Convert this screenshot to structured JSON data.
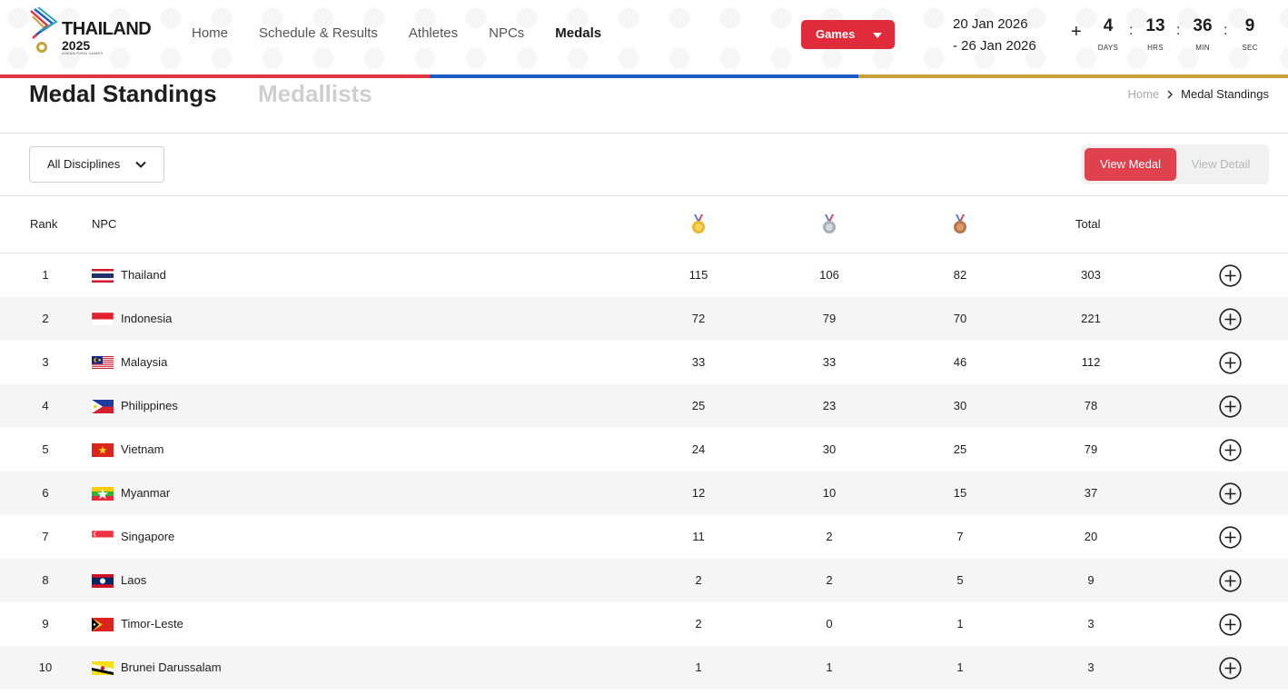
{
  "header": {
    "logo": {
      "word": "THAILAND",
      "year": "2025",
      "subtitle": "ASEAN PARA GAMES"
    },
    "nav": [
      {
        "label": "Home",
        "active": false
      },
      {
        "label": "Schedule & Results",
        "active": false
      },
      {
        "label": "Athletes",
        "active": false
      },
      {
        "label": "NPCs",
        "active": false
      },
      {
        "label": "Medals",
        "active": true
      }
    ],
    "games_button": "Games",
    "dates": {
      "start": "20 Jan 2026",
      "end": "- 26 Jan 2026"
    },
    "plus": "+",
    "countdown": [
      {
        "value": "4",
        "label": "DAYS"
      },
      {
        "value": "13",
        "label": "HRS"
      },
      {
        "value": "36",
        "label": "MIN"
      },
      {
        "value": "9",
        "label": "SEC"
      }
    ],
    "stripe_colors": [
      "#e23340",
      "#1d5cc8",
      "#c8a13a"
    ]
  },
  "page": {
    "title_active": "Medal Standings",
    "title_inactive": "Medallists",
    "breadcrumb": {
      "home": "Home",
      "current": "Medal Standings"
    }
  },
  "filters": {
    "discipline_selected": "All Disciplines",
    "view_medal": "View Medal",
    "view_detail": "View Detail",
    "accent": "#e0414e"
  },
  "table": {
    "headers": {
      "rank": "Rank",
      "npc": "NPC",
      "gold_icon": "gold-medal-icon",
      "silver_icon": "silver-medal-icon",
      "bronze_icon": "bronze-medal-icon",
      "total": "Total"
    },
    "rows": [
      {
        "rank": "1",
        "country": "Thailand",
        "flag": "thailand",
        "gold": "115",
        "silver": "106",
        "bronze": "82",
        "total": "303"
      },
      {
        "rank": "2",
        "country": "Indonesia",
        "flag": "indonesia",
        "gold": "72",
        "silver": "79",
        "bronze": "70",
        "total": "221"
      },
      {
        "rank": "3",
        "country": "Malaysia",
        "flag": "malaysia",
        "gold": "33",
        "silver": "33",
        "bronze": "46",
        "total": "112"
      },
      {
        "rank": "4",
        "country": "Philippines",
        "flag": "philippines",
        "gold": "25",
        "silver": "23",
        "bronze": "30",
        "total": "78"
      },
      {
        "rank": "5",
        "country": "Vietnam",
        "flag": "vietnam",
        "gold": "24",
        "silver": "30",
        "bronze": "25",
        "total": "79"
      },
      {
        "rank": "6",
        "country": "Myanmar",
        "flag": "myanmar",
        "gold": "12",
        "silver": "10",
        "bronze": "15",
        "total": "37"
      },
      {
        "rank": "7",
        "country": "Singapore",
        "flag": "singapore",
        "gold": "11",
        "silver": "2",
        "bronze": "7",
        "total": "20"
      },
      {
        "rank": "8",
        "country": "Laos",
        "flag": "laos",
        "gold": "2",
        "silver": "2",
        "bronze": "5",
        "total": "9"
      },
      {
        "rank": "9",
        "country": "Timor-Leste",
        "flag": "timor-leste",
        "gold": "2",
        "silver": "0",
        "bronze": "1",
        "total": "3"
      },
      {
        "rank": "10",
        "country": "Brunei Darussalam",
        "flag": "brunei",
        "gold": "1",
        "silver": "1",
        "bronze": "1",
        "total": "3"
      }
    ]
  }
}
